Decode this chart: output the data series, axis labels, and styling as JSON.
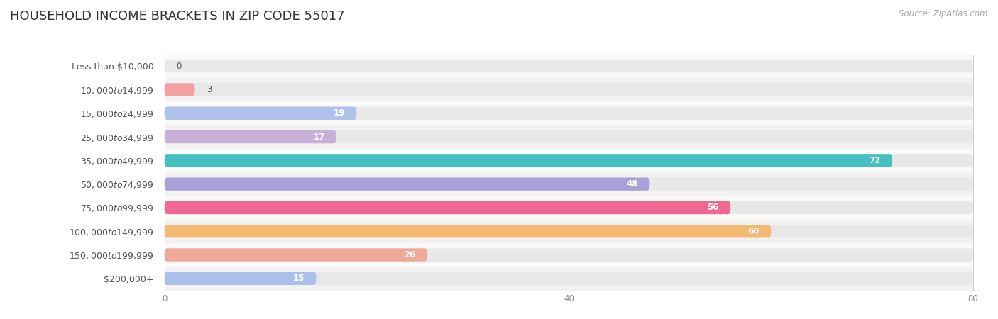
{
  "title": "HOUSEHOLD INCOME BRACKETS IN ZIP CODE 55017",
  "source": "Source: ZipAtlas.com",
  "categories": [
    "Less than $10,000",
    "$10,000 to $14,999",
    "$15,000 to $24,999",
    "$25,000 to $34,999",
    "$35,000 to $49,999",
    "$50,000 to $74,999",
    "$75,000 to $99,999",
    "$100,000 to $149,999",
    "$150,000 to $199,999",
    "$200,000+"
  ],
  "values": [
    0,
    3,
    19,
    17,
    72,
    48,
    56,
    60,
    26,
    15
  ],
  "bar_colors": [
    "#f7c89c",
    "#f4a0a0",
    "#afc0ea",
    "#c8b0d8",
    "#45c0c0",
    "#a8a2d8",
    "#f06892",
    "#f5b870",
    "#f0a898",
    "#a8c0ea"
  ],
  "xlim": [
    0,
    84
  ],
  "xticks": [
    0,
    40,
    80
  ],
  "background_color": "#ffffff",
  "bar_bg_color": "#e8e8e8",
  "row_bg_colors": [
    "#f9f9f9",
    "#f2f2f2"
  ],
  "title_fontsize": 13,
  "label_fontsize": 9,
  "value_fontsize": 8.5,
  "source_fontsize": 8.5,
  "bar_height": 0.55
}
